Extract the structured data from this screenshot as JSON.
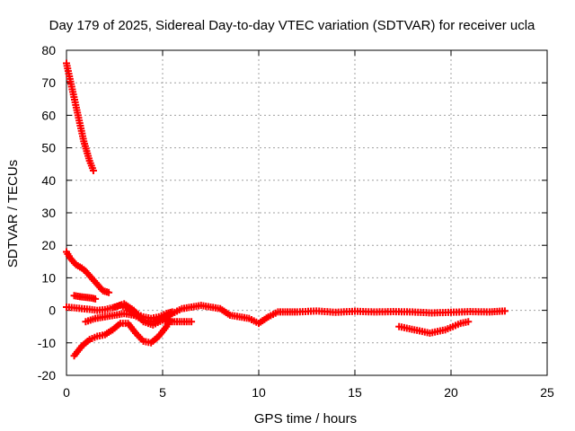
{
  "chart_data": {
    "type": "scatter",
    "title": "Day 179 of 2025, Sidereal Day-to-day VTEC variation (SDTVAR) for receiver ucla",
    "xlabel": "GPS time / hours",
    "ylabel": "SDTVAR / TECUs",
    "xlim": [
      0,
      25
    ],
    "ylim": [
      -20,
      80
    ],
    "xticks": [
      0,
      5,
      10,
      15,
      20,
      25
    ],
    "yticks": [
      -20,
      -10,
      0,
      10,
      20,
      30,
      40,
      50,
      60,
      70,
      80
    ],
    "grid": true,
    "marker": "+",
    "color": "#ff0000",
    "series": [
      {
        "name": "arc-1",
        "x": [
          0.0,
          0.3,
          0.6,
          0.9,
          1.2,
          1.4
        ],
        "y": [
          76,
          68,
          60,
          52,
          46,
          43
        ]
      },
      {
        "name": "arc-2",
        "x": [
          0.0,
          0.2,
          0.5,
          0.8,
          1.0,
          1.3,
          1.6,
          1.9,
          2.2
        ],
        "y": [
          18,
          16,
          14,
          13,
          12,
          10,
          8,
          6,
          5.5
        ]
      },
      {
        "name": "arc-3",
        "x": [
          0.4,
          0.7,
          1.0,
          1.3,
          1.5
        ],
        "y": [
          4.5,
          4.2,
          4.0,
          3.8,
          3.5
        ]
      },
      {
        "name": "arc-4",
        "x": [
          0.0,
          0.4,
          0.8,
          1.2,
          1.6,
          2.0,
          2.4,
          2.8,
          3.2,
          3.6,
          4.0,
          4.4,
          4.8,
          5.2,
          5.5
        ],
        "y": [
          1.0,
          0.8,
          0.5,
          0.3,
          0.0,
          0.2,
          0.8,
          1.5,
          0.5,
          -1.0,
          -2.0,
          -2.5,
          -2.0,
          -1.0,
          -0.5
        ]
      },
      {
        "name": "arc-5",
        "x": [
          1.0,
          1.5,
          2.0,
          2.5,
          3.0,
          3.5,
          4.0,
          4.5,
          5.0,
          5.5,
          6.0,
          6.5
        ],
        "y": [
          -3.5,
          -2.5,
          -2.0,
          -1.5,
          -1.0,
          -1.5,
          -3.0,
          -3.5,
          -3.0,
          -3.5,
          -3.5,
          -3.5
        ]
      },
      {
        "name": "arc-6",
        "x": [
          0.4,
          0.8,
          1.2,
          1.6,
          2.0,
          2.4,
          2.8,
          3.2,
          3.6,
          4.0,
          4.4,
          4.8,
          5.2,
          5.4
        ],
        "y": [
          -14,
          -11,
          -9,
          -8,
          -7.5,
          -6,
          -4,
          -4,
          -7,
          -9.5,
          -10,
          -8,
          -5,
          -3
        ]
      },
      {
        "name": "arc-7",
        "x": [
          2.5,
          3.0,
          3.5,
          4.0,
          4.5,
          5.0,
          5.5,
          6.0,
          6.5,
          7.0,
          7.5,
          8.0,
          8.5,
          9.0,
          9.5,
          10.0,
          10.5,
          11.0,
          11.5,
          12.0,
          13.0,
          14.0,
          15.0,
          16.0,
          17.0,
          18.0,
          19.0,
          20.0,
          21.0,
          22.0,
          22.8
        ],
        "y": [
          1.0,
          2.0,
          0.0,
          -3.5,
          -4.5,
          -3.0,
          -1.0,
          0.5,
          1.0,
          1.5,
          1.0,
          0.5,
          -1.5,
          -2.0,
          -2.5,
          -4.0,
          -2.0,
          -0.5,
          -0.5,
          -0.5,
          -0.2,
          -0.6,
          -0.3,
          -0.5,
          -0.4,
          -0.5,
          -0.8,
          -0.6,
          -0.4,
          -0.5,
          -0.2
        ]
      },
      {
        "name": "arc-8",
        "x": [
          17.3,
          17.7,
          18.1,
          18.5,
          18.9,
          19.3,
          19.7,
          20.1,
          20.5,
          20.9
        ],
        "y": [
          -5,
          -5.5,
          -6,
          -6.5,
          -7,
          -6.5,
          -6,
          -5,
          -4,
          -3.5
        ]
      }
    ]
  }
}
